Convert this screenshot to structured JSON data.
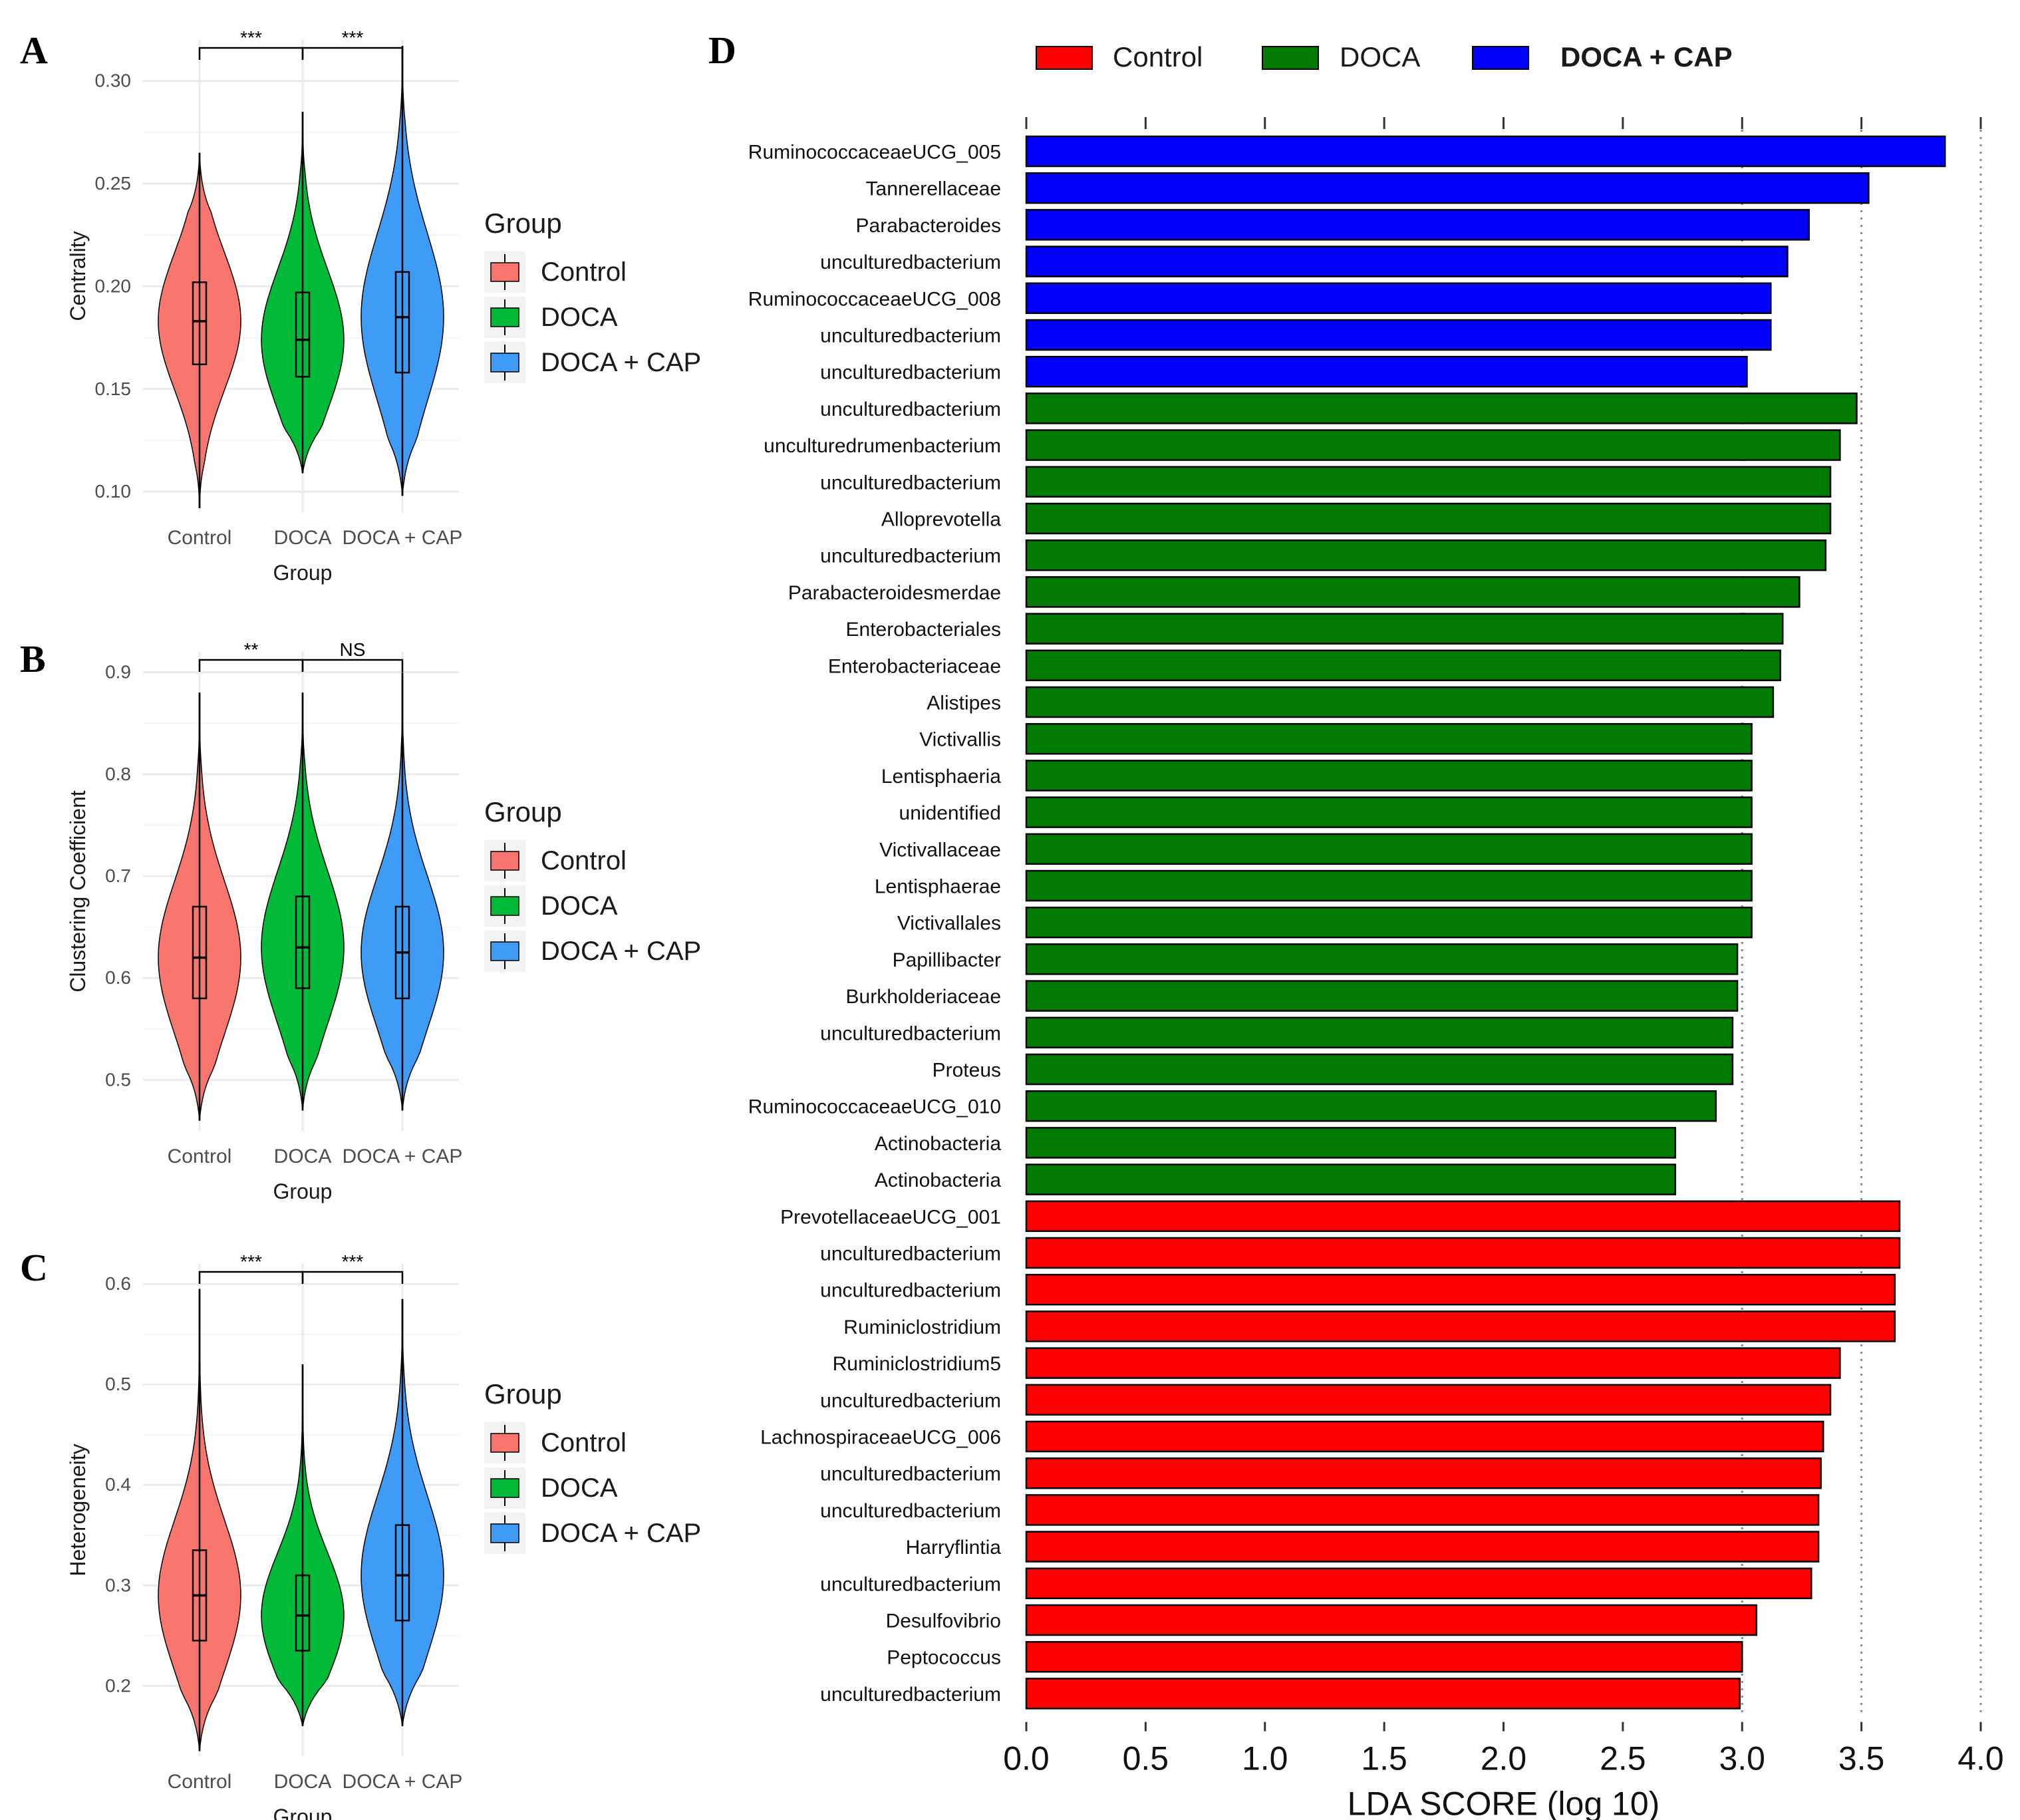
{
  "colors": {
    "control": "#f8766d",
    "doca": "#00ba38",
    "doca_cap": "#3e9cf7",
    "lda_control": "#ff0000",
    "lda_doca": "#007a00",
    "lda_doca_cap": "#0000ff"
  },
  "legend_violin": {
    "title": "Group",
    "items": [
      "Control",
      "DOCA",
      "DOCA + CAP"
    ]
  },
  "chart_data": [
    {
      "panel": "A",
      "type": "violin",
      "categories": [
        "Control",
        "DOCA",
        "DOCA + CAP"
      ],
      "xlabel": "Group",
      "ylabel": "Centrality",
      "ylim": [
        0.09,
        0.32
      ],
      "yticks": [
        "0.10",
        "0.15",
        "0.20",
        "0.25",
        "0.30"
      ],
      "grid": true,
      "legend": "right",
      "series": [
        {
          "name": "Control",
          "min": 0.092,
          "max": 0.265,
          "q1": 0.162,
          "median": 0.183,
          "q3": 0.202
        },
        {
          "name": "DOCA",
          "min": 0.109,
          "max": 0.285,
          "q1": 0.156,
          "median": 0.174,
          "q3": 0.197
        },
        {
          "name": "DOCA + CAP",
          "min": 0.098,
          "max": 0.317,
          "q1": 0.158,
          "median": 0.185,
          "q3": 0.207
        }
      ],
      "significance": [
        {
          "pair": [
            "Control",
            "DOCA"
          ],
          "label": "***"
        },
        {
          "pair": [
            "DOCA",
            "DOCA + CAP"
          ],
          "label": "***"
        }
      ]
    },
    {
      "panel": "B",
      "type": "violin",
      "categories": [
        "Control",
        "DOCA",
        "DOCA + CAP"
      ],
      "xlabel": "Group",
      "ylabel": "Clustering Coefficient",
      "ylim": [
        0.45,
        0.92
      ],
      "yticks": [
        "0.5",
        "0.6",
        "0.7",
        "0.8",
        "0.9"
      ],
      "grid": true,
      "legend": "right",
      "series": [
        {
          "name": "Control",
          "min": 0.46,
          "max": 0.88,
          "q1": 0.58,
          "median": 0.62,
          "q3": 0.67
        },
        {
          "name": "DOCA",
          "min": 0.47,
          "max": 0.88,
          "q1": 0.59,
          "median": 0.63,
          "q3": 0.68
        },
        {
          "name": "DOCA + CAP",
          "min": 0.47,
          "max": 0.9,
          "q1": 0.58,
          "median": 0.625,
          "q3": 0.67
        }
      ],
      "significance": [
        {
          "pair": [
            "Control",
            "DOCA"
          ],
          "label": "**"
        },
        {
          "pair": [
            "DOCA",
            "DOCA + CAP"
          ],
          "label": "NS"
        }
      ]
    },
    {
      "panel": "C",
      "type": "violin",
      "categories": [
        "Control",
        "DOCA",
        "DOCA + CAP"
      ],
      "xlabel": "Group",
      "ylabel": "Heterogeneity",
      "ylim": [
        0.13,
        0.62
      ],
      "yticks": [
        "0.2",
        "0.3",
        "0.4",
        "0.5",
        "0.6"
      ],
      "grid": true,
      "legend": "right",
      "series": [
        {
          "name": "Control",
          "min": 0.135,
          "max": 0.595,
          "q1": 0.245,
          "median": 0.29,
          "q3": 0.335
        },
        {
          "name": "DOCA",
          "min": 0.16,
          "max": 0.52,
          "q1": 0.235,
          "median": 0.27,
          "q3": 0.31
        },
        {
          "name": "DOCA + CAP",
          "min": 0.16,
          "max": 0.585,
          "q1": 0.265,
          "median": 0.31,
          "q3": 0.36
        }
      ],
      "significance": [
        {
          "pair": [
            "Control",
            "DOCA"
          ],
          "label": "***"
        },
        {
          "pair": [
            "DOCA",
            "DOCA + CAP"
          ],
          "label": "***"
        }
      ]
    },
    {
      "panel": "D",
      "type": "bar",
      "orientation": "horizontal",
      "xlabel": "LDA SCORE (log 10)",
      "xlim": [
        0,
        4.0
      ],
      "xticks": [
        "0.0",
        "0.5",
        "1.0",
        "1.5",
        "2.0",
        "2.5",
        "3.0",
        "3.5",
        "4.0"
      ],
      "grid": true,
      "legend": "top",
      "legend_items": [
        {
          "name": "Control",
          "color": "lda_control"
        },
        {
          "name": "DOCA",
          "color": "lda_doca"
        },
        {
          "name": "DOCA + CAP",
          "color": "lda_doca_cap"
        }
      ],
      "bars": [
        {
          "label": "RuminococcaceaeUCG_005",
          "value": 3.85,
          "group": "DOCA + CAP"
        },
        {
          "label": "Tannerellaceae",
          "value": 3.53,
          "group": "DOCA + CAP"
        },
        {
          "label": "Parabacteroides",
          "value": 3.28,
          "group": "DOCA + CAP"
        },
        {
          "label": "unculturedbacterium",
          "value": 3.19,
          "group": "DOCA + CAP"
        },
        {
          "label": "RuminococcaceaeUCG_008",
          "value": 3.12,
          "group": "DOCA + CAP"
        },
        {
          "label": "unculturedbacterium",
          "value": 3.12,
          "group": "DOCA + CAP"
        },
        {
          "label": "unculturedbacterium",
          "value": 3.02,
          "group": "DOCA + CAP"
        },
        {
          "label": "unculturedbacterium",
          "value": 3.48,
          "group": "DOCA"
        },
        {
          "label": "unculturedrumenbacterium",
          "value": 3.41,
          "group": "DOCA"
        },
        {
          "label": "unculturedbacterium",
          "value": 3.37,
          "group": "DOCA"
        },
        {
          "label": "Alloprevotella",
          "value": 3.37,
          "group": "DOCA"
        },
        {
          "label": "unculturedbacterium",
          "value": 3.35,
          "group": "DOCA"
        },
        {
          "label": "Parabacteroidesmerdae",
          "value": 3.24,
          "group": "DOCA"
        },
        {
          "label": "Enterobacteriales",
          "value": 3.17,
          "group": "DOCA"
        },
        {
          "label": "Enterobacteriaceae",
          "value": 3.16,
          "group": "DOCA"
        },
        {
          "label": "Alistipes",
          "value": 3.13,
          "group": "DOCA"
        },
        {
          "label": "Victivallis",
          "value": 3.04,
          "group": "DOCA"
        },
        {
          "label": "Lentisphaeria",
          "value": 3.04,
          "group": "DOCA"
        },
        {
          "label": "unidentified",
          "value": 3.04,
          "group": "DOCA"
        },
        {
          "label": "Victivallaceae",
          "value": 3.04,
          "group": "DOCA"
        },
        {
          "label": "Lentisphaerae",
          "value": 3.04,
          "group": "DOCA"
        },
        {
          "label": "Victivallales",
          "value": 3.04,
          "group": "DOCA"
        },
        {
          "label": "Papillibacter",
          "value": 2.98,
          "group": "DOCA"
        },
        {
          "label": "Burkholderiaceae",
          "value": 2.98,
          "group": "DOCA"
        },
        {
          "label": "unculturedbacterium",
          "value": 2.96,
          "group": "DOCA"
        },
        {
          "label": "Proteus",
          "value": 2.96,
          "group": "DOCA"
        },
        {
          "label": "RuminococcaceaeUCG_010",
          "value": 2.89,
          "group": "DOCA"
        },
        {
          "label": "Actinobacteria",
          "value": 2.72,
          "group": "DOCA"
        },
        {
          "label": "Actinobacteria",
          "value": 2.72,
          "group": "DOCA"
        },
        {
          "label": "PrevotellaceaeUCG_001",
          "value": 3.66,
          "group": "Control"
        },
        {
          "label": "unculturedbacterium",
          "value": 3.66,
          "group": "Control"
        },
        {
          "label": "unculturedbacterium",
          "value": 3.64,
          "group": "Control"
        },
        {
          "label": "Ruminiclostridium",
          "value": 3.64,
          "group": "Control"
        },
        {
          "label": "Ruminiclostridium5",
          "value": 3.41,
          "group": "Control"
        },
        {
          "label": "unculturedbacterium",
          "value": 3.37,
          "group": "Control"
        },
        {
          "label": "LachnospiraceaeUCG_006",
          "value": 3.34,
          "group": "Control"
        },
        {
          "label": "unculturedbacterium",
          "value": 3.33,
          "group": "Control"
        },
        {
          "label": "unculturedbacterium",
          "value": 3.32,
          "group": "Control"
        },
        {
          "label": "Harryflintia",
          "value": 3.32,
          "group": "Control"
        },
        {
          "label": "unculturedbacterium",
          "value": 3.29,
          "group": "Control"
        },
        {
          "label": "Desulfovibrio",
          "value": 3.06,
          "group": "Control"
        },
        {
          "label": "Peptococcus",
          "value": 3.0,
          "group": "Control"
        },
        {
          "label": "unculturedbacterium",
          "value": 2.99,
          "group": "Control"
        }
      ]
    }
  ]
}
